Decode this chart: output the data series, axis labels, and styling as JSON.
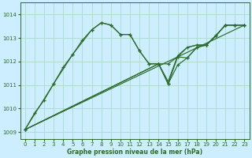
{
  "xlabel": "Graphe pression niveau de la mer (hPa)",
  "bg_color": "#cceeff",
  "grid_color": "#b0ddd0",
  "line_color": "#2d6a2d",
  "xlim": [
    -0.5,
    23.5
  ],
  "ylim": [
    1008.7,
    1014.5
  ],
  "yticks": [
    1009,
    1010,
    1011,
    1012,
    1013,
    1014
  ],
  "xticks": [
    0,
    1,
    2,
    3,
    4,
    5,
    6,
    7,
    8,
    9,
    10,
    11,
    12,
    13,
    14,
    15,
    16,
    17,
    18,
    19,
    20,
    21,
    22,
    23
  ],
  "line1_x": [
    0,
    1,
    2,
    3,
    4,
    5,
    6,
    7,
    8,
    9,
    10,
    11,
    12,
    13,
    14,
    15,
    16,
    17,
    18,
    19,
    20,
    21,
    22,
    23
  ],
  "line1_y": [
    1009.1,
    1009.8,
    1010.35,
    1011.05,
    1011.75,
    1012.3,
    1012.9,
    1013.35,
    1013.65,
    1013.55,
    1013.15,
    1013.15,
    1012.45,
    1011.9,
    1011.9,
    1011.9,
    1012.2,
    1012.15,
    1012.6,
    1012.7,
    1013.1,
    1013.55,
    1013.55,
    1013.55
  ],
  "line2_x": [
    0,
    3,
    5,
    7,
    8,
    9,
    10,
    11,
    12,
    13,
    14,
    15,
    16,
    17,
    18,
    19,
    20,
    21,
    22,
    23
  ],
  "line2_y": [
    1009.1,
    1011.05,
    1012.3,
    1013.35,
    1013.65,
    1013.55,
    1013.15,
    1013.15,
    1012.45,
    1011.9,
    1011.9,
    1011.05,
    1011.85,
    1012.15,
    1012.6,
    1012.7,
    1013.1,
    1013.55,
    1013.55,
    1013.55
  ],
  "line3_x": [
    0,
    14,
    15,
    16,
    17,
    18,
    19,
    20,
    21,
    22,
    23
  ],
  "line3_y": [
    1009.1,
    1011.9,
    1011.05,
    1012.2,
    1012.6,
    1012.7,
    1012.7,
    1013.1,
    1013.55,
    1013.55,
    1013.55
  ],
  "line4_x": [
    0,
    14,
    15,
    16,
    17,
    18,
    19,
    20,
    21,
    22,
    23
  ],
  "line4_y": [
    1009.1,
    1011.9,
    1011.15,
    1012.25,
    1012.6,
    1012.7,
    1012.7,
    1013.1,
    1013.55,
    1013.55,
    1013.55
  ],
  "line5_x": [
    0,
    23
  ],
  "line5_y": [
    1009.1,
    1013.55
  ]
}
